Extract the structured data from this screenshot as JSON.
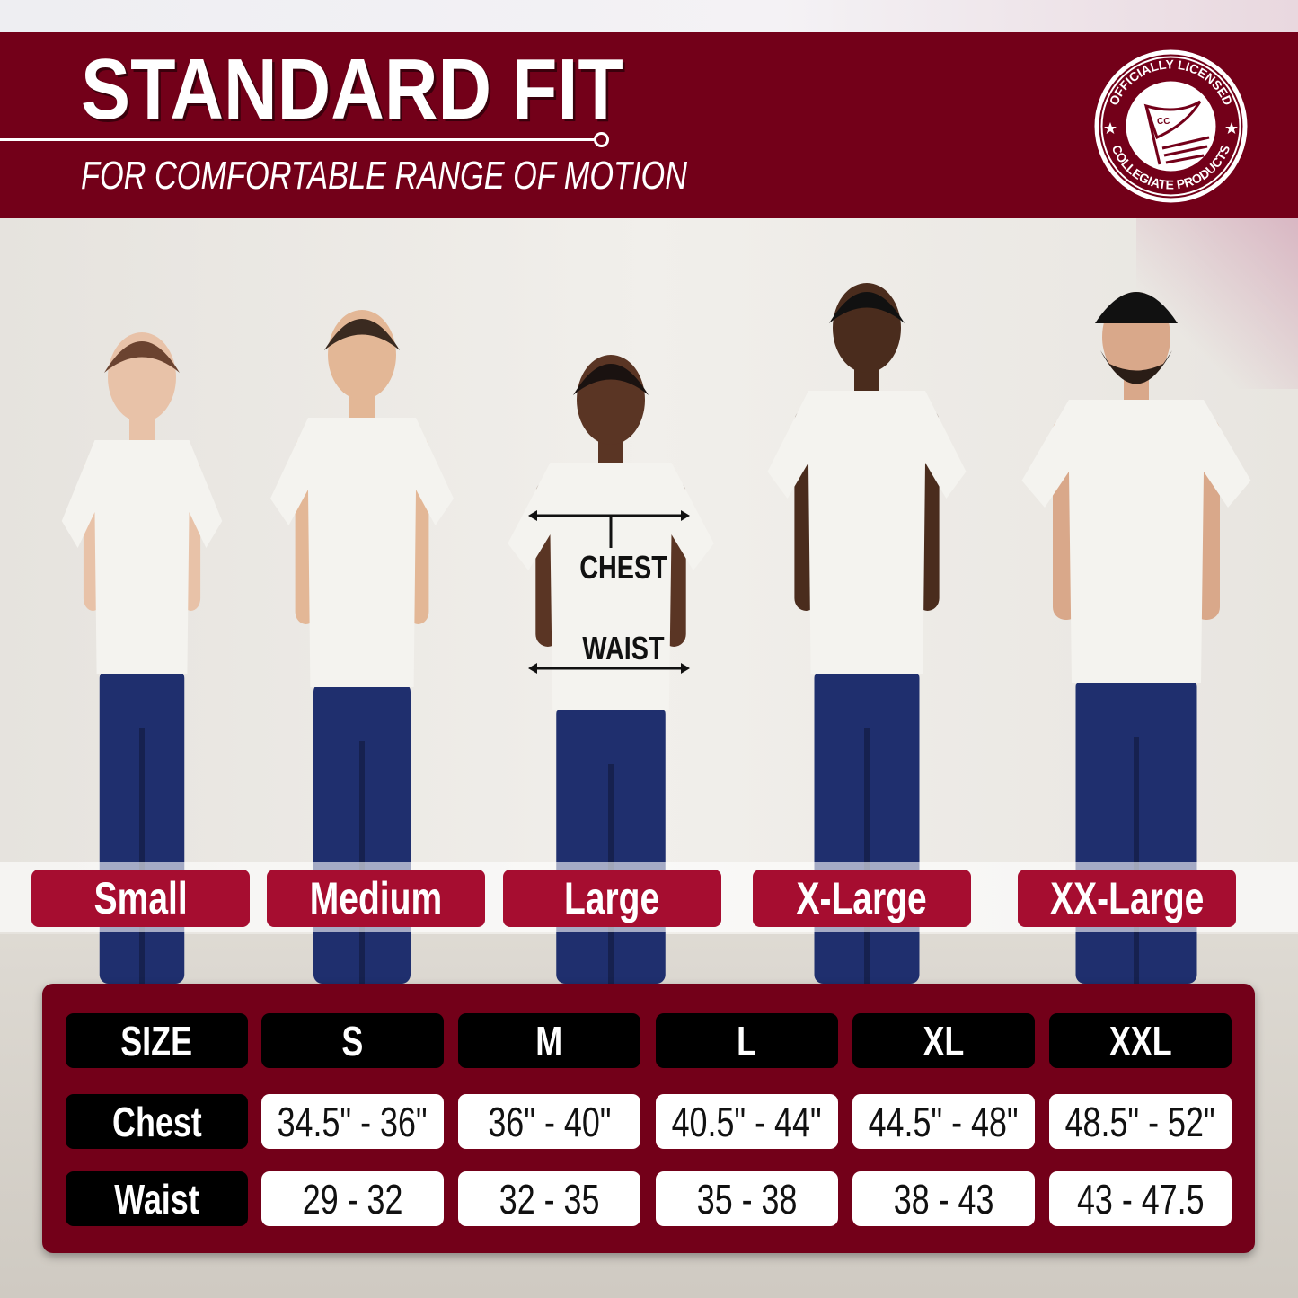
{
  "header": {
    "title": "STANDARD FIT",
    "subtitle": "FOR COMFORTABLE RANGE OF MOTION"
  },
  "logo": {
    "top_text": "OFFICIALLY LICENSED",
    "bottom_text": "COLLEGIATE PRODUCTS",
    "flag_text": "CC"
  },
  "colors": {
    "brand": "#730019",
    "pill": "#a60d30",
    "jeans": "#1f2f6e",
    "shirt": "#f4f3ef"
  },
  "model_measurements": {
    "chest": "CHEST",
    "waist": "WAIST"
  },
  "size_labels": [
    "Small",
    "Medium",
    "Large",
    "X-Large",
    "XX-Large"
  ],
  "size_table": {
    "header": [
      "SIZE",
      "S",
      "M",
      "L",
      "XL",
      "XXL"
    ],
    "rows": [
      {
        "label": "Chest",
        "values": [
          "34.5\" - 36\"",
          "36\" - 40\"",
          "40.5\" - 44\"",
          "44.5\" - 48\"",
          "48.5\" - 52\""
        ]
      },
      {
        "label": "Waist",
        "values": [
          "29 - 32",
          "32 - 35",
          "35 - 38",
          "38 - 43",
          "43 - 47.5"
        ]
      }
    ]
  }
}
